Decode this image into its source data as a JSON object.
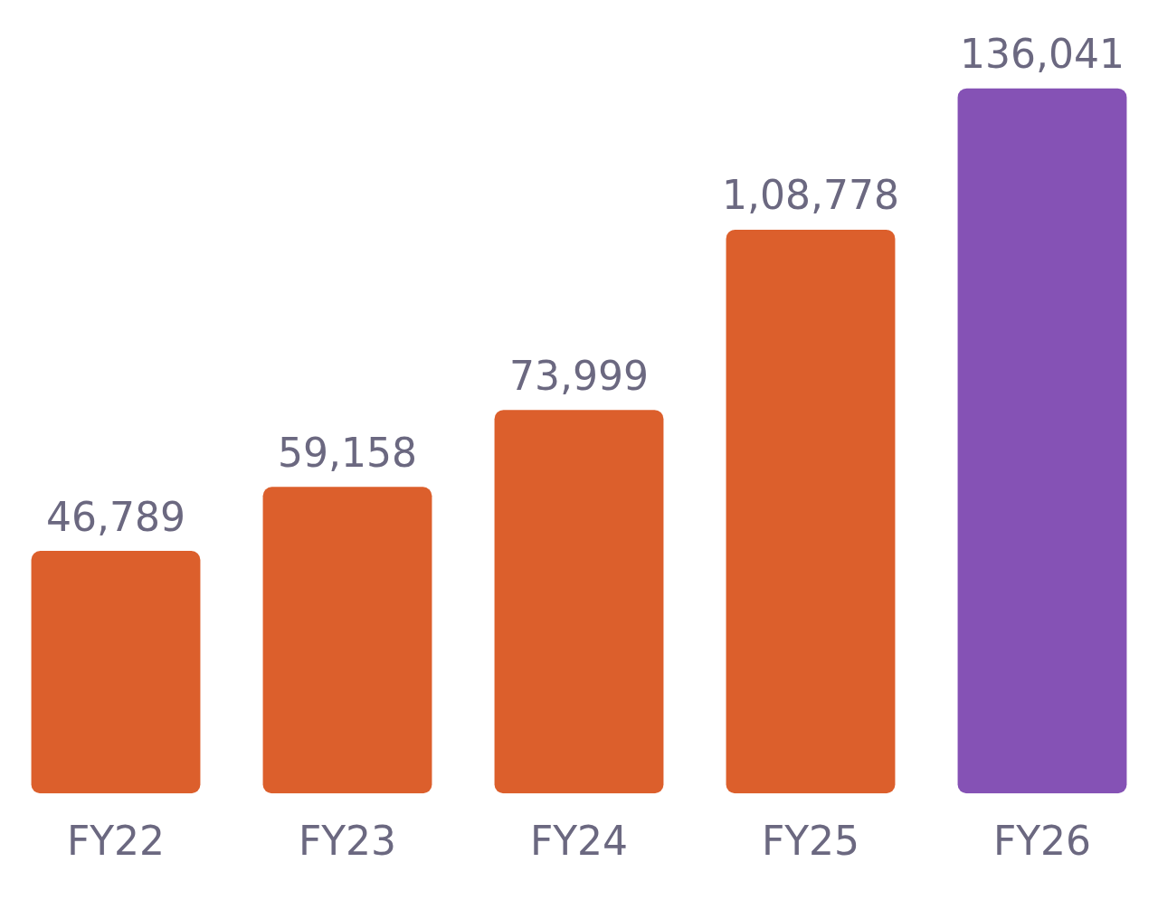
{
  "chart_data": {
    "type": "bar",
    "categories": [
      "FY22",
      "FY23",
      "FY24",
      "FY25",
      "FY26"
    ],
    "values": [
      46789,
      59158,
      73999,
      108778,
      136041
    ],
    "colors": [
      "#dc5f2c",
      "#dc5f2c",
      "#dc5f2c",
      "#dc5f2c",
      "#8552b5"
    ],
    "value_labels": [
      "46,789",
      "59,158",
      "73,999",
      "1,08,778",
      "136,041"
    ],
    "grid": false,
    "legend": false
  }
}
